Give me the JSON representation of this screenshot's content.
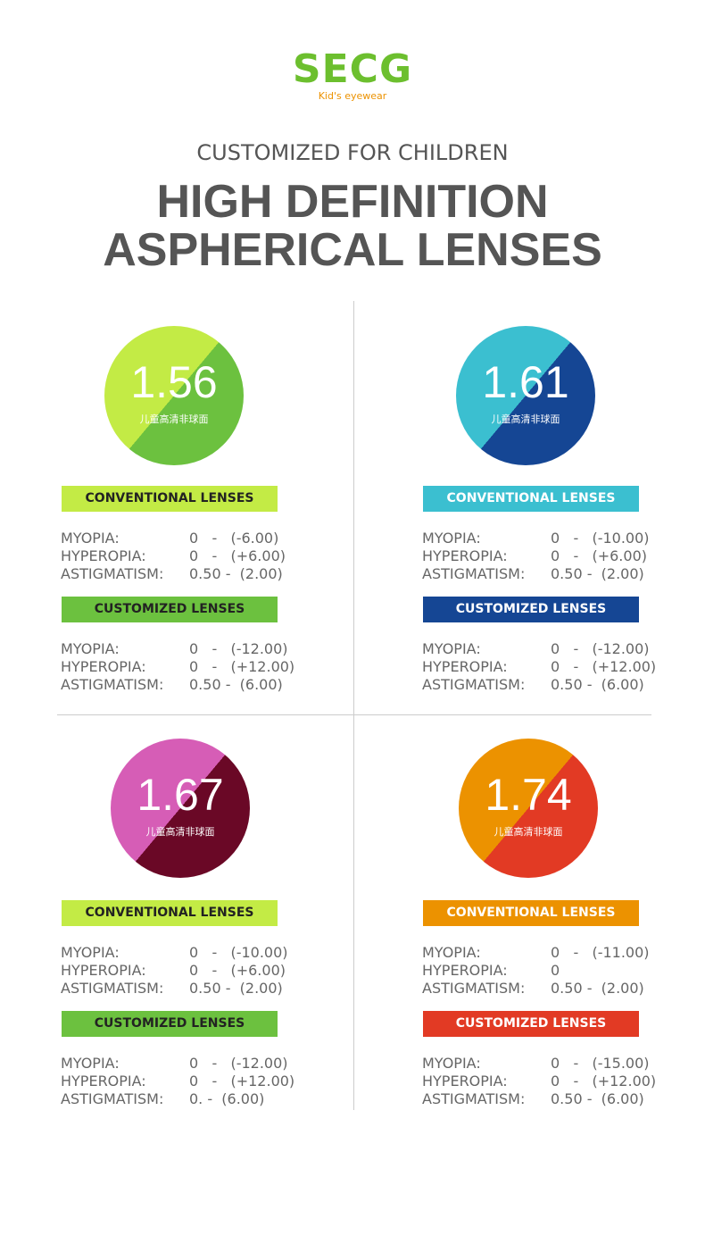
{
  "logo": {
    "brand": "SECG",
    "tagline": "Kid's eyewear"
  },
  "header": {
    "subtitle": "CUSTOMIZED FOR CHILDREN",
    "title_lines": [
      "HIGH DEFINITION",
      "ASPHERICAL LENSES"
    ]
  },
  "lenses": [
    {
      "index": "1.56",
      "caption": "儿童高清非球面",
      "conventional": {
        "label": "CONVENTIONAL LENSES",
        "rows": [
          {
            "name": "MYOPIA:",
            "range": "0   -   (-6.00)"
          },
          {
            "name": "HYPEROPIA:",
            "range": "0   -   (+6.00)"
          },
          {
            "name": "ASTIGMATISM:",
            "range": "0.50 -  (2.00)"
          }
        ]
      },
      "customized": {
        "label": "CUSTOMIZED LENSES",
        "rows": [
          {
            "name": "MYOPIA:",
            "range": "0   -   (-12.00)"
          },
          {
            "name": "HYPEROPIA:",
            "range": "0   -   (+12.00)"
          },
          {
            "name": "ASTIGMATISM:",
            "range": "0.50 -  (6.00)"
          }
        ]
      }
    },
    {
      "index": "1.61",
      "caption": "儿童高清非球面",
      "conventional": {
        "label": "CONVENTIONAL LENSES",
        "rows": [
          {
            "name": "MYOPIA:",
            "range": "0   -   (-10.00)"
          },
          {
            "name": "HYPEROPIA:",
            "range": "0   -   (+6.00)"
          },
          {
            "name": "ASTIGMATISM:",
            "range": "0.50 -  (2.00)"
          }
        ]
      },
      "customized": {
        "label": "CUSTOMIZED LENSES",
        "rows": [
          {
            "name": "MYOPIA:",
            "range": "0   -   (-12.00)"
          },
          {
            "name": "HYPEROPIA:",
            "range": "0   -   (+12.00)"
          },
          {
            "name": "ASTIGMATISM:",
            "range": "0.50 -  (6.00)"
          }
        ]
      }
    },
    {
      "index": "1.67",
      "caption": "儿童高清非球面",
      "conventional": {
        "label": "CONVENTIONAL LENSES",
        "rows": [
          {
            "name": "MYOPIA:",
            "range": "0   -   (-10.00)"
          },
          {
            "name": "HYPEROPIA:",
            "range": "0   -   (+6.00)"
          },
          {
            "name": "ASTIGMATISM:",
            "range": "0.50 -  (2.00)"
          }
        ]
      },
      "customized": {
        "label": "CUSTOMIZED LENSES",
        "rows": [
          {
            "name": "MYOPIA:",
            "range": "0   -   (-12.00)"
          },
          {
            "name": "HYPEROPIA:",
            "range": "0   -   (+12.00)"
          },
          {
            "name": "ASTIGMATISM:",
            "range": "0. -  (6.00)"
          }
        ]
      }
    },
    {
      "index": "1.74",
      "caption": "儿童高清非球面",
      "conventional": {
        "label": "CONVENTIONAL LENSES",
        "rows": [
          {
            "name": "MYOPIA:",
            "range": "0   -   (-11.00)"
          },
          {
            "name": "HYPEROPIA:",
            "range": "0"
          },
          {
            "name": "ASTIGMATISM:",
            "range": "0.50 -  (2.00)"
          }
        ]
      },
      "customized": {
        "label": "CUSTOMIZED LENSES",
        "rows": [
          {
            "name": "MYOPIA:",
            "range": "0   -   (-15.00)"
          },
          {
            "name": "HYPEROPIA:",
            "range": "0   -   (+12.00)"
          },
          {
            "name": "ASTIGMATISM:",
            "range": "0.50 -  (6.00)"
          }
        ]
      }
    }
  ]
}
